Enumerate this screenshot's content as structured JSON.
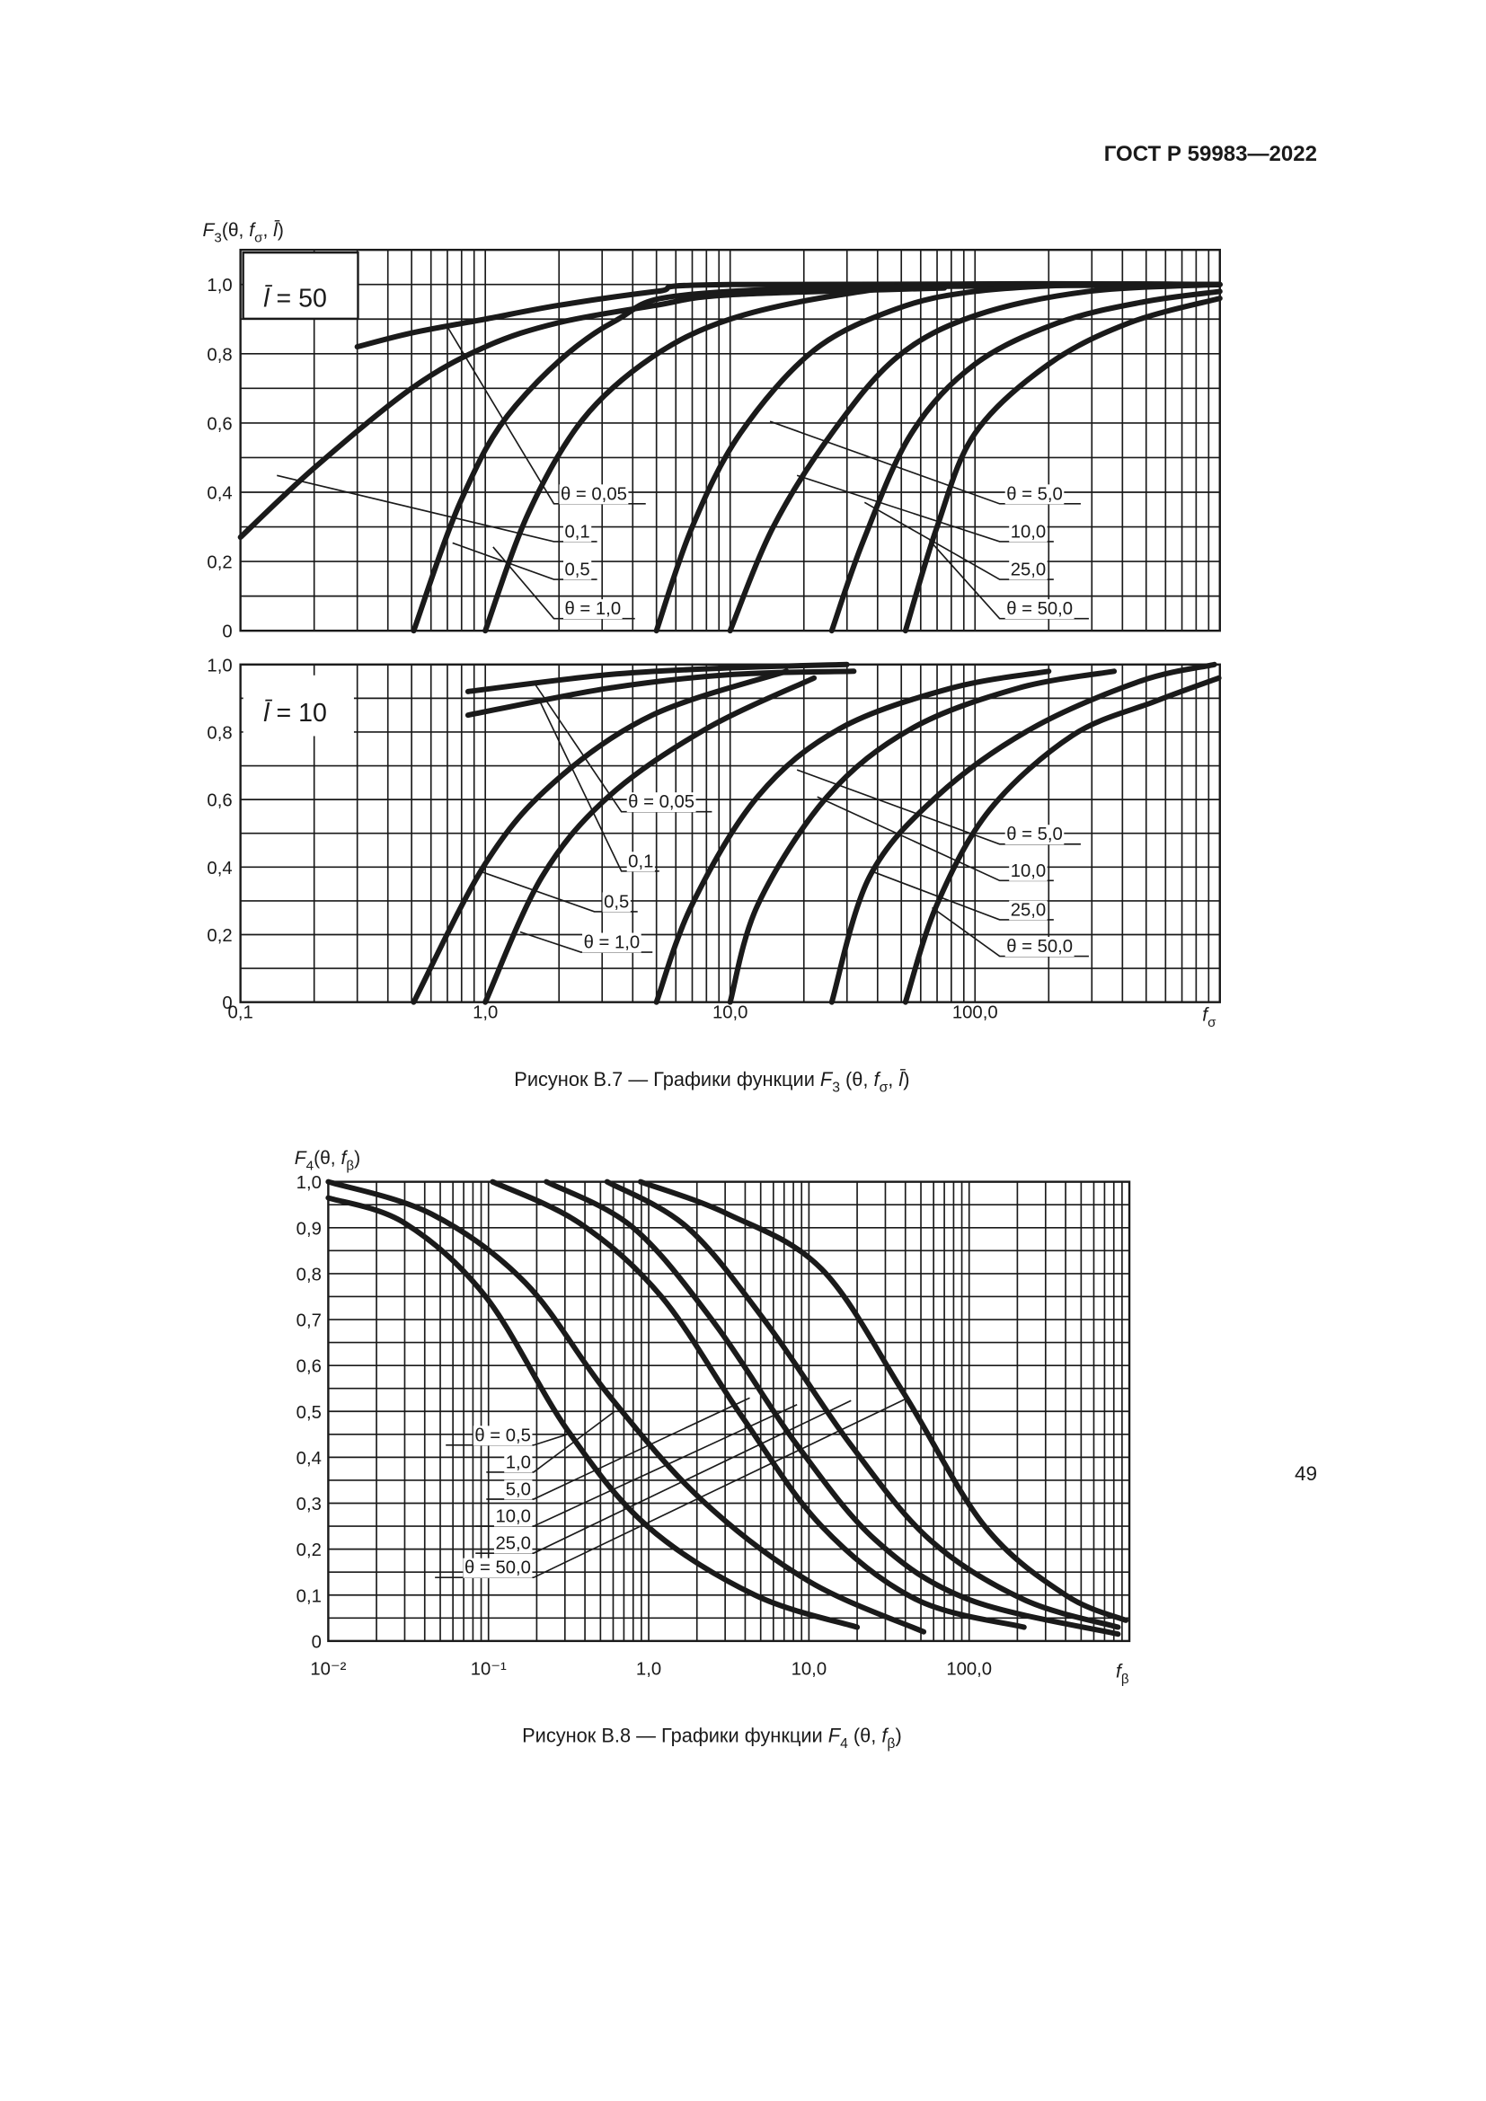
{
  "header": {
    "title": "ГОСТ Р 59983—2022"
  },
  "page_number": "49",
  "figures": [
    {
      "caption": [
        {
          "text": "Рисунок В.7 — Графики функции "
        },
        {
          "text": "F",
          "style": "italic"
        },
        {
          "text": "3",
          "style": "sub"
        },
        {
          "text": " (θ, "
        },
        {
          "text": "f",
          "style": "italic"
        },
        {
          "text": "σ",
          "style": "sub"
        },
        {
          "text": ", "
        },
        {
          "text": "l̄",
          "style": "italic"
        },
        {
          "text": ")"
        }
      ]
    },
    {
      "caption": [
        {
          "text": "Рисунок В.8 — Графики функции "
        },
        {
          "text": "F",
          "style": "italic"
        },
        {
          "text": "4",
          "style": "sub"
        },
        {
          "text": " (θ, "
        },
        {
          "text": "f",
          "style": "italic"
        },
        {
          "text": "β",
          "style": "sub"
        },
        {
          "text": ")"
        }
      ]
    }
  ],
  "chart_data": [
    {
      "type": "line",
      "xscale": "log",
      "grid": true,
      "minor_log_grid": true,
      "ylabel": [
        {
          "text": "F",
          "style": "italic"
        },
        {
          "text": "3",
          "style": "sub"
        },
        {
          "text": "(θ, "
        },
        {
          "text": "f",
          "style": "italic"
        },
        {
          "text": "σ",
          "style": "sub"
        },
        {
          "text": ", "
        },
        {
          "text": "l̄",
          "style": "italic"
        },
        {
          "text": ")"
        }
      ],
      "panel_label": [
        {
          "text": "l̄",
          "style": "italic"
        },
        {
          "text": " = 50"
        }
      ],
      "panel_label_boxed": true,
      "xlim": [
        0.1,
        1000
      ],
      "xticks": [
        {
          "value": 0.1,
          "label": "0,1"
        },
        {
          "value": 1,
          "label": "1,0"
        },
        {
          "value": 10,
          "label": "10,0"
        },
        {
          "value": 100,
          "label": "100,0"
        }
      ],
      "show_xtick_labels": false,
      "ylim": [
        0,
        1.1
      ],
      "yticks": [
        0,
        {
          "value": 0.2,
          "label": "0,2"
        },
        {
          "value": 0.4,
          "label": "0,4"
        },
        {
          "value": 0.6,
          "label": "0,6"
        },
        {
          "value": 0.8,
          "label": "0,8"
        },
        {
          "value": 1,
          "label": "1,0"
        }
      ],
      "yminor": [
        0.1,
        0.3,
        0.5,
        0.7,
        0.9
      ],
      "series": [
        {
          "name": "θ = 0,05",
          "color": "#1a1a1a",
          "x": [
            0.3,
            0.5,
            1,
            2,
            5,
            10,
            1000
          ],
          "values": [
            0.82,
            0.86,
            0.9,
            0.94,
            0.98,
            1.0,
            1.0
          ]
        },
        {
          "name": "0,1",
          "color": "#1a1a1a",
          "x": [
            0.1,
            0.2,
            0.5,
            1,
            2,
            5,
            10,
            75
          ],
          "values": [
            0.27,
            0.47,
            0.7,
            0.82,
            0.89,
            0.94,
            0.97,
            0.99
          ]
        },
        {
          "name": "0,5",
          "color": "#1a1a1a",
          "x": [
            0.51,
            0.8,
            1.33,
            3.3,
            10,
            1000
          ],
          "values": [
            0,
            0.38,
            0.65,
            0.89,
            0.98,
            1.0
          ]
        },
        {
          "name": "θ = 1,0",
          "color": "#1a1a1a",
          "x": [
            1,
            1.5,
            2.5,
            4.8,
            10,
            28,
            80,
            1000
          ],
          "values": [
            0,
            0.34,
            0.61,
            0.79,
            0.9,
            0.97,
            1.0,
            1.0
          ]
        },
        {
          "name": "θ = 5,0",
          "color": "#1a1a1a",
          "x": [
            5,
            7,
            11,
            22,
            48,
            100,
            290,
            1000
          ],
          "values": [
            0,
            0.3,
            0.57,
            0.81,
            0.93,
            0.98,
            1.0,
            1.0
          ]
        },
        {
          "name": "10,0",
          "color": "#1a1a1a",
          "x": [
            10,
            15,
            26,
            48,
            100,
            290,
            1000
          ],
          "values": [
            0,
            0.3,
            0.57,
            0.79,
            0.91,
            0.98,
            1.0
          ]
        },
        {
          "name": "25,0",
          "color": "#1a1a1a",
          "x": [
            26,
            35,
            55,
            100,
            220,
            490,
            1000
          ],
          "values": [
            0,
            0.26,
            0.57,
            0.77,
            0.89,
            0.95,
            0.98
          ]
        },
        {
          "name": "θ = 50,0",
          "color": "#1a1a1a",
          "x": [
            52,
            70,
            100,
            200,
            430,
            1000
          ],
          "values": [
            0,
            0.3,
            0.57,
            0.77,
            0.89,
            0.96
          ]
        }
      ]
    },
    {
      "type": "line",
      "xscale": "log",
      "grid": true,
      "minor_log_grid": true,
      "panel_label": [
        {
          "text": "l̄",
          "style": "italic"
        },
        {
          "text": " = 10"
        }
      ],
      "panel_label_boxed": false,
      "xlabel": [
        {
          "text": "f",
          "style": "italic"
        },
        {
          "text": "σ",
          "style": "sub"
        }
      ],
      "xlim": [
        0.1,
        1000
      ],
      "xticks": [
        {
          "value": 0.1,
          "label": "0,1"
        },
        {
          "value": 1,
          "label": "1,0"
        },
        {
          "value": 10,
          "label": "10,0"
        },
        {
          "value": 100,
          "label": "100,0"
        }
      ],
      "show_xtick_labels": true,
      "ylim": [
        0,
        1
      ],
      "yticks": [
        0,
        {
          "value": 0.2,
          "label": "0,2"
        },
        {
          "value": 0.4,
          "label": "0,4"
        },
        {
          "value": 0.6,
          "label": "0,6"
        },
        {
          "value": 0.8,
          "label": "0,8"
        },
        {
          "value": 1,
          "label": "1,0"
        }
      ],
      "yminor": [
        0.1,
        0.3,
        0.5,
        0.7,
        0.9
      ],
      "series": [
        {
          "name": "θ = 0,05",
          "color": "#1a1a1a",
          "x": [
            0.85,
            3.2,
            10,
            30
          ],
          "values": [
            0.92,
            0.97,
            0.99,
            1.0
          ]
        },
        {
          "name": "0,1",
          "color": "#1a1a1a",
          "x": [
            0.85,
            3.2,
            10,
            32
          ],
          "values": [
            0.85,
            0.93,
            0.97,
            0.98
          ]
        },
        {
          "name": "0,5",
          "color": "#1a1a1a",
          "x": [
            0.51,
            1,
            1.9,
            4.8,
            17
          ],
          "values": [
            0,
            0.41,
            0.65,
            0.85,
            0.98
          ]
        },
        {
          "name": "θ = 1,0",
          "color": "#1a1a1a",
          "x": [
            1,
            1.7,
            3.2,
            8,
            22
          ],
          "values": [
            0,
            0.37,
            0.61,
            0.81,
            0.96
          ]
        },
        {
          "name": "θ = 5,0",
          "color": "#1a1a1a",
          "x": [
            5,
            7,
            13,
            28,
            80,
            200
          ],
          "values": [
            0,
            0.29,
            0.61,
            0.81,
            0.93,
            0.98
          ]
        },
        {
          "name": "10,0",
          "color": "#1a1a1a",
          "x": [
            10,
            13,
            25,
            55,
            150,
            370
          ],
          "values": [
            0,
            0.29,
            0.61,
            0.81,
            0.93,
            0.98
          ]
        },
        {
          "name": "25,0",
          "color": "#1a1a1a",
          "x": [
            26,
            37,
            70,
            170,
            470,
            950
          ],
          "values": [
            0,
            0.37,
            0.61,
            0.81,
            0.95,
            1.0
          ]
        },
        {
          "name": "θ = 50,0",
          "color": "#1a1a1a",
          "x": [
            52,
            70,
            115,
            250,
            540,
            990
          ],
          "values": [
            0,
            0.29,
            0.57,
            0.79,
            0.89,
            0.96
          ]
        }
      ]
    },
    {
      "type": "line",
      "xscale": "log",
      "grid": true,
      "minor_log_grid": true,
      "ylabel": [
        {
          "text": "F",
          "style": "italic"
        },
        {
          "text": "4",
          "style": "sub"
        },
        {
          "text": "(θ, "
        },
        {
          "text": "f",
          "style": "italic"
        },
        {
          "text": "β",
          "style": "sub"
        },
        {
          "text": ")"
        }
      ],
      "xlabel": [
        {
          "text": "f",
          "style": "italic"
        },
        {
          "text": "β",
          "style": "sub"
        }
      ],
      "xlim": [
        0.01,
        1000
      ],
      "xticks": [
        {
          "value": 0.01,
          "label": "10⁻²"
        },
        {
          "value": 0.1,
          "label": "10⁻¹"
        },
        {
          "value": 1,
          "label": "1,0"
        },
        {
          "value": 10,
          "label": "10,0"
        },
        {
          "value": 100,
          "label": "100,0"
        }
      ],
      "show_xtick_labels": true,
      "ylim": [
        0,
        1
      ],
      "yticks": [
        0,
        {
          "value": 0.1,
          "label": "0,1"
        },
        {
          "value": 0.2,
          "label": "0,2"
        },
        {
          "value": 0.3,
          "label": "0,3"
        },
        {
          "value": 0.4,
          "label": "0,4"
        },
        {
          "value": 0.5,
          "label": "0,5"
        },
        {
          "value": 0.6,
          "label": "0,6"
        },
        {
          "value": 0.7,
          "label": "0,7"
        },
        {
          "value": 0.8,
          "label": "0,8"
        },
        {
          "value": 0.9,
          "label": "0,9"
        },
        {
          "value": 1,
          "label": "1,0"
        }
      ],
      "yminor": [
        0.05,
        0.15,
        0.25,
        0.35,
        0.45,
        0.55,
        0.65,
        0.75,
        0.85,
        0.95
      ],
      "series": [
        {
          "name": "θ = 0,5",
          "color": "#1a1a1a",
          "x": [
            0.01,
            0.03,
            0.096,
            0.31,
            0.98,
            4.6,
            20
          ],
          "values": [
            0.965,
            0.91,
            0.75,
            0.46,
            0.25,
            0.1,
            0.03
          ]
        },
        {
          "name": "1,0",
          "color": "#1a1a1a",
          "x": [
            0.01,
            0.044,
            0.17,
            0.55,
            2.1,
            10,
            52
          ],
          "values": [
            1.0,
            0.93,
            0.78,
            0.54,
            0.31,
            0.13,
            0.02
          ]
        },
        {
          "name": "5,0",
          "color": "#1a1a1a",
          "x": [
            0.106,
            0.37,
            1.2,
            3.8,
            12,
            47,
            220
          ],
          "values": [
            1.0,
            0.91,
            0.75,
            0.49,
            0.25,
            0.09,
            0.03
          ]
        },
        {
          "name": "10,0",
          "color": "#1a1a1a",
          "x": [
            0.23,
            0.8,
            2.6,
            8.3,
            26,
            100,
            850
          ],
          "values": [
            1.0,
            0.9,
            0.69,
            0.43,
            0.22,
            0.09,
            0.015
          ]
        },
        {
          "name": "25,0",
          "color": "#1a1a1a",
          "x": [
            0.55,
            1.75,
            5.5,
            18,
            57,
            220,
            850
          ],
          "values": [
            1.0,
            0.9,
            0.69,
            0.43,
            0.22,
            0.09,
            0.03
          ]
        },
        {
          "name": "θ = 50,0",
          "color": "#1a1a1a",
          "x": [
            0.89,
            3.1,
            12,
            39,
            125,
            400,
            950
          ],
          "values": [
            1.0,
            0.93,
            0.81,
            0.54,
            0.25,
            0.1,
            0.045
          ]
        }
      ]
    }
  ]
}
